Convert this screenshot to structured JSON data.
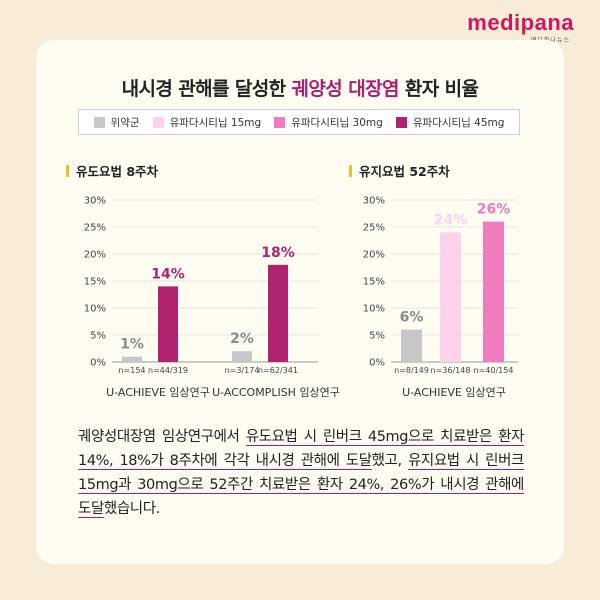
{
  "brand": {
    "name": "medipana",
    "sub": "메디파나뉴스"
  },
  "title": {
    "prefix": "내시경 관해를 달성한 ",
    "highlight": "궤양성 대장염",
    "suffix": " 환자 비율"
  },
  "legend": [
    {
      "label": "위약군",
      "color": "#c7c7c7"
    },
    {
      "label": "유파다시티닙 15mg",
      "color": "#fdd2ea"
    },
    {
      "label": "유파다시티닙 30mg",
      "color": "#f07bbf"
    },
    {
      "label": "유파다시티닙 45mg",
      "color": "#b0246f"
    }
  ],
  "chart_data": [
    {
      "type": "bar",
      "title": "유도요법 8주차",
      "ylim": [
        0,
        30
      ],
      "yticks": [
        "0%",
        "5%",
        "10%",
        "15%",
        "20%",
        "25%",
        "30%"
      ],
      "groups": [
        {
          "name": "U-ACHIEVE 임상연구",
          "bars": [
            {
              "series": "위약군",
              "value": 1,
              "label": "1%",
              "n": "n=154",
              "color": "#c7c7c7"
            },
            {
              "series": "유파다시티닙 45mg",
              "value": 14,
              "label": "14%",
              "n": "n=44/319",
              "color": "#b0246f"
            }
          ]
        },
        {
          "name": "U-ACCOMPLISH 임상연구",
          "bars": [
            {
              "series": "위약군",
              "value": 2,
              "label": "2%",
              "n": "n=3/174",
              "color": "#c7c7c7"
            },
            {
              "series": "유파다시티닙 45mg",
              "value": 18,
              "label": "18%",
              "n": "n=62/341",
              "color": "#b0246f"
            }
          ]
        }
      ]
    },
    {
      "type": "bar",
      "title": "유지요법 52주차",
      "ylim": [
        0,
        30
      ],
      "yticks": [
        "0%",
        "5%",
        "10%",
        "15%",
        "20%",
        "25%",
        "30%"
      ],
      "groups": [
        {
          "name": "U-ACHIEVE 임상연구",
          "bars": [
            {
              "series": "위약군",
              "value": 6,
              "label": "6%",
              "n": "n=8/149",
              "color": "#c7c7c7"
            },
            {
              "series": "유파다시티닙 15mg",
              "value": 24,
              "label": "24%",
              "n": "n=36/148",
              "color": "#fdd2ea"
            },
            {
              "series": "유파다시티닙 30mg",
              "value": 26,
              "label": "26%",
              "n": "n=40/154",
              "color": "#f07bbf"
            }
          ]
        }
      ]
    }
  ],
  "description": [
    {
      "text": "궤양성대장염 임상연구에서 ",
      "u": false
    },
    {
      "text": "유도요법 시 린버크 45mg으로 치료받은 환자 14%, 18%가 8주차에 각각 내시경 관해에 도달",
      "u": true
    },
    {
      "text": "했고, ",
      "u": false
    },
    {
      "text": "유지요법 시 린버크 15mg과 30mg으로 52주간 치료받은 환자 24%, 26%가 내시경 관해에 도달",
      "u": true
    },
    {
      "text": "했습니다.",
      "u": false
    }
  ]
}
